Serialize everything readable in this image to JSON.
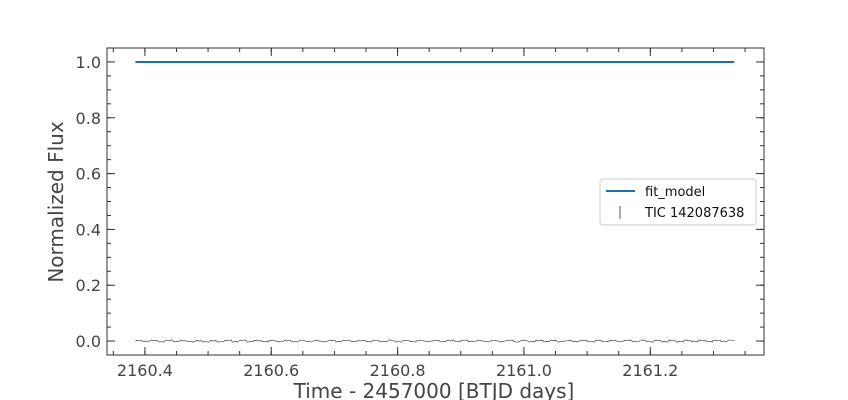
{
  "chart_data": {
    "type": "line",
    "xlabel": "Time - 2457000 [BTJD days]",
    "ylabel": "Normalized Flux",
    "xlim": [
      2160.34,
      2161.38
    ],
    "ylim": [
      -0.05,
      1.05
    ],
    "x_ticks": [
      2160.4,
      2160.6,
      2160.8,
      2161.0,
      2161.2
    ],
    "x_tick_labels": [
      "2160.4",
      "2160.6",
      "2160.8",
      "2161.0",
      "2161.2"
    ],
    "y_ticks": [
      0.0,
      0.2,
      0.4,
      0.6,
      0.8,
      1.0
    ],
    "y_tick_labels": [
      "0.0",
      "0.2",
      "0.4",
      "0.6",
      "0.8",
      "1.0"
    ],
    "grid": false,
    "legend_position": "center-right",
    "series": [
      {
        "name": "fit_model",
        "style": "line",
        "color": "#1f6ea8",
        "x": [
          2160.385,
          2161.333
        ],
        "y": [
          1.0,
          1.0
        ]
      },
      {
        "name": "TIC 142087638",
        "style": "points",
        "color": "#333333",
        "x_start": 2160.385,
        "x_end": 2161.333,
        "y_level": 0.0,
        "y_scatter": 0.004
      }
    ]
  }
}
